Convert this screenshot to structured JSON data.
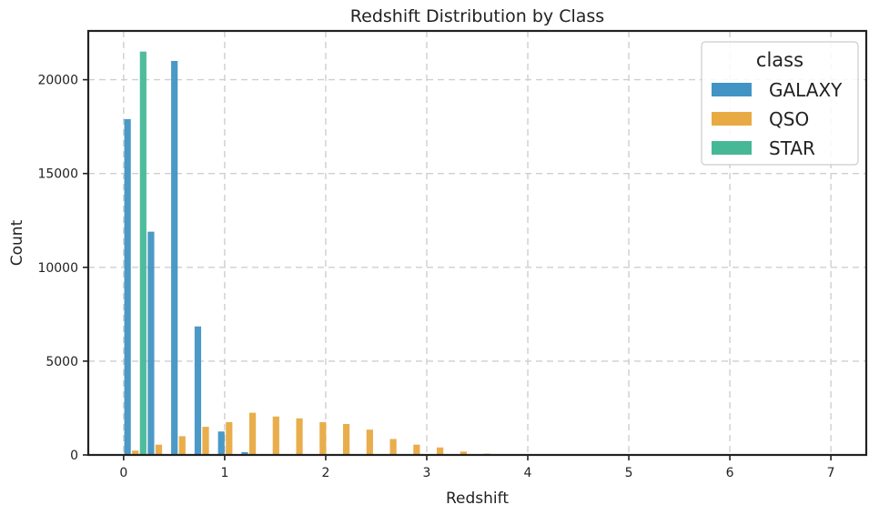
{
  "chart_data": {
    "type": "bar",
    "title": "Redshift Distribution by Class",
    "xlabel": "Redshift",
    "ylabel": "Count",
    "xlim": [
      -0.35,
      7.35
    ],
    "ylim": [
      0,
      22600
    ],
    "x_ticks": [
      0,
      1,
      2,
      3,
      4,
      5,
      6,
      7
    ],
    "y_ticks": [
      0,
      5000,
      10000,
      15000,
      20000
    ],
    "bin_width": 0.232,
    "grid": true,
    "legend_title": "class",
    "legend_position": "top-right",
    "bins": [
      0.0,
      0.232,
      0.464,
      0.696,
      0.928,
      1.16,
      1.392,
      1.624,
      1.856,
      2.088,
      2.32,
      2.552,
      2.784,
      3.016,
      3.248,
      3.48,
      3.712,
      3.944,
      4.176,
      4.408,
      4.64,
      4.872,
      5.104,
      5.336,
      5.568,
      5.8,
      6.032,
      6.264,
      6.496,
      6.728,
      6.96
    ],
    "series": [
      {
        "name": "GALAXY",
        "color": "#4194c3",
        "values": [
          17900,
          11900,
          21000,
          6850,
          1250,
          150,
          0,
          0,
          0,
          0,
          0,
          0,
          0,
          0,
          0,
          0,
          0,
          0,
          0,
          0,
          0,
          0,
          0,
          0,
          0,
          0,
          0,
          0,
          0,
          0,
          0
        ]
      },
      {
        "name": "QSO",
        "color": "#e8aa42",
        "values": [
          230,
          550,
          1000,
          1500,
          1750,
          2250,
          2050,
          1950,
          1750,
          1650,
          1350,
          850,
          550,
          400,
          180,
          70,
          40,
          25,
          15,
          10,
          8,
          6,
          5,
          4,
          3,
          3,
          2,
          2,
          2,
          1,
          1
        ]
      },
      {
        "name": "STAR",
        "color": "#47b896",
        "values": [
          21500,
          0,
          0,
          0,
          0,
          0,
          0,
          0,
          0,
          0,
          0,
          0,
          0,
          0,
          0,
          0,
          0,
          0,
          0,
          0,
          0,
          0,
          0,
          0,
          0,
          0,
          0,
          0,
          0,
          0,
          0
        ]
      }
    ]
  }
}
